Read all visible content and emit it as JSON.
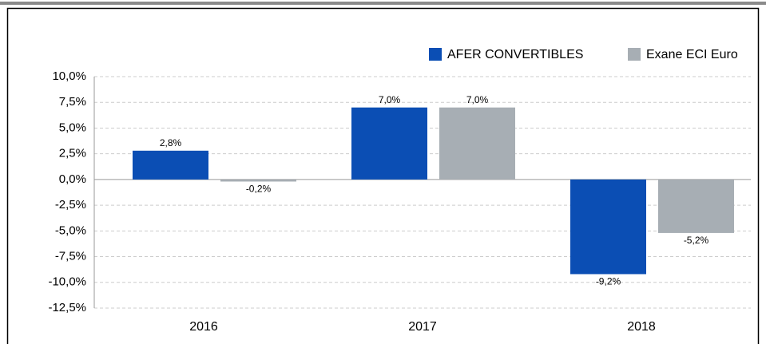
{
  "chart_data": {
    "type": "bar",
    "categories": [
      "2016",
      "2017",
      "2018"
    ],
    "series": [
      {
        "name": "AFER CONVERTIBLES",
        "color": "#0b4eb4",
        "values": [
          2.8,
          7.0,
          -9.2
        ],
        "value_labels": [
          "2,8%",
          "7,0%",
          "-9,2%"
        ]
      },
      {
        "name": "Exane ECI Euro",
        "color": "#a7aeb4",
        "values": [
          -0.2,
          7.0,
          -5.2
        ],
        "value_labels": [
          "-0,2%",
          "7,0%",
          "-5,2%"
        ]
      }
    ],
    "ylim": [
      -12.5,
      10
    ],
    "yticks": [
      {
        "value": -12.5,
        "label": "-12,5%"
      },
      {
        "value": -10,
        "label": "-10,0%"
      },
      {
        "value": -7.5,
        "label": "-7,5%"
      },
      {
        "value": -5,
        "label": "-5,0%"
      },
      {
        "value": -2.5,
        "label": "-2,5%"
      },
      {
        "value": 0,
        "label": "0,0%"
      },
      {
        "value": 2.5,
        "label": "2,5%"
      },
      {
        "value": 5,
        "label": "5,0%"
      },
      {
        "value": 7.5,
        "label": "7,5%"
      },
      {
        "value": 10,
        "label": "10,0%"
      }
    ],
    "grid": true,
    "legend": "top-right"
  }
}
